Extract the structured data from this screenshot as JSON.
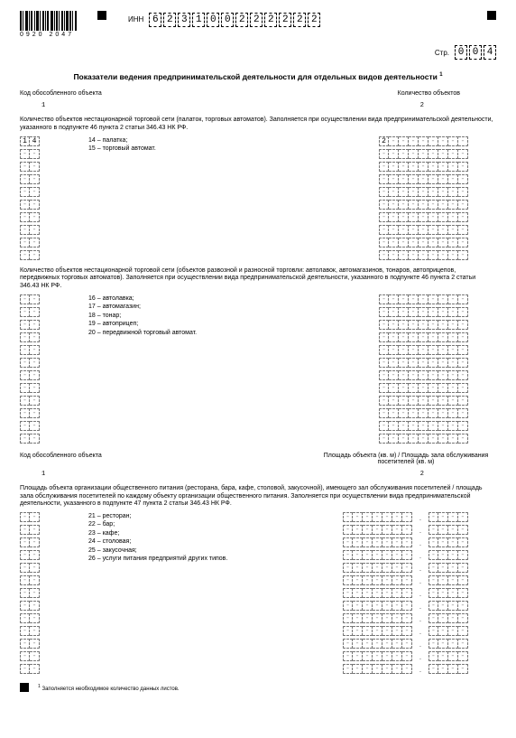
{
  "barcode_number": "0920 2047",
  "sq_top": true,
  "inn": {
    "label": "ИНН",
    "digits": [
      "6",
      "2",
      "3",
      "1",
      "0",
      "0",
      "2",
      "2",
      "2",
      "2",
      "2",
      "2"
    ]
  },
  "page": {
    "label": "Стр.",
    "digits": [
      "0",
      "0",
      "4"
    ]
  },
  "title": "Показатели ведения предпринимательской деятельности для отдельных видов деятельности",
  "title_sup": "1",
  "section1": {
    "left_label": "Код обособленного объекта",
    "right_label": "Количество объектов",
    "ghost_left": "1",
    "ghost_right": "2",
    "desc": "Количество объектов нестационарной торговой сети (палаток, торговых автоматов). Заполняется при осуществлении вида предпринимательской деятельности, указанного в подпункте 46 пункта 2 статьи 346.43 НК РФ.",
    "legend": [
      "14 – палатка;",
      "15 – торговый автомат."
    ],
    "left_first": [
      "1",
      "4"
    ],
    "right_first": [
      "2",
      "",
      "",
      "",
      "",
      "",
      "",
      "",
      ""
    ],
    "left_rows": 10,
    "left_cols": 2,
    "right_rows": 10,
    "right_cols": 9
  },
  "section2": {
    "desc": "Количество объектов нестационарной торговой сети (объектов развозной и разносной торговли: автолавок, автомагазинов, тонаров, автоприцепов, передвижных торговых автоматов). Заполняется при осуществлении вида предпринимательской деятельности, указанного в подпункте 46 пункта 2 статьи 346.43 НК РФ.",
    "legend": [
      "16 – автолавка;",
      "17 – автомагазин;",
      "18 – тонар;",
      "19 – автоприцеп;",
      "20 – передвижной торговый автомат."
    ],
    "left_rows": 12,
    "left_cols": 2,
    "right_rows": 12,
    "right_cols": 9
  },
  "section3": {
    "left_label": "Код обособленного объекта",
    "right_label": "Площадь объекта (кв. м) / Площадь зала обслуживания посетителей (кв. м)",
    "ghost_left": "1",
    "ghost_right": "2",
    "desc": "Площадь объекта организации общественного питания (ресторана, бара, кафе, столовой, закусочной), имеющего зал обслуживания посетителей / площадь зала обслуживания посетителей по каждому объекту организации общественного питания. Заполняется при осуществлении вида предпринимательской деятельности, указанного в подпункте 47 пункта 2 статьи 346.43 НК РФ.",
    "legend": [
      "21 – ресторан;",
      "22 – бар;",
      "23 – кафе;",
      "24 – столовая;",
      "25 – закусочная;",
      "26 – услуги питания предприятий других типов."
    ],
    "left_rows": 13,
    "left_cols": 2,
    "right_rows": 13,
    "right_cols_a": 7,
    "right_cols_b": 4
  },
  "footnote_sup": "1",
  "footnote": "Заполняется необходимое количество данных листов."
}
